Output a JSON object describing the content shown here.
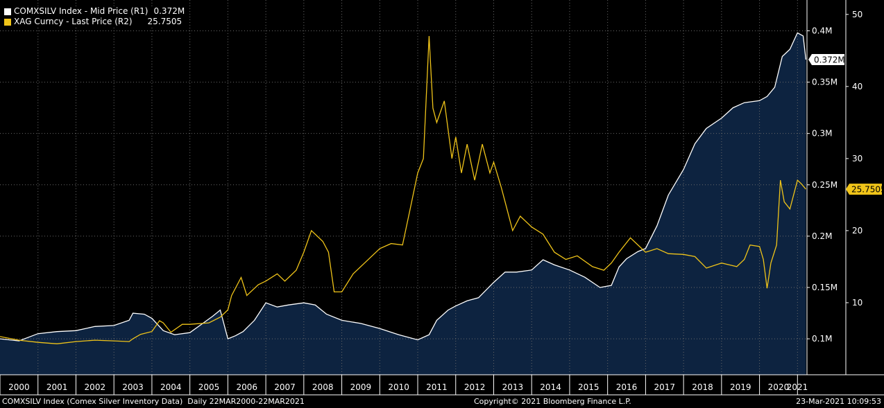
{
  "legend": [
    {
      "label": "COMXSILV Index - Mid Price (R1)",
      "value": "0.372M",
      "color": "#ffffff"
    },
    {
      "label": "XAG Curncy - Last Price (R2)",
      "value": "25.7505",
      "color": "#f0c419"
    }
  ],
  "footer": {
    "left": "COMXSILV Index (Comex Silver Inventory Data)  Daily 22MAR2000-22MAR2021",
    "center": "Copyright© 2021 Bloomberg Finance L.P.",
    "right": "23-Mar-2021 10:09:53"
  },
  "chart_data": {
    "type": "line",
    "x_tick_labels": [
      "2000",
      "2001",
      "2002",
      "2003",
      "2004",
      "2005",
      "2006",
      "2007",
      "2008",
      "2009",
      "2010",
      "2011",
      "2012",
      "2013",
      "2014",
      "2015",
      "2016",
      "2017",
      "2018",
      "2019",
      "2020",
      "2021"
    ],
    "grid": true,
    "series": [
      {
        "name": "COMXSILV Index - Mid Price (R1)",
        "axis": "R1",
        "style": "area",
        "color": "#ffffff",
        "fill": "#0d2340",
        "last_value_label": "0.372M",
        "x": [
          2000.0,
          2000.5,
          2001.0,
          2001.5,
          2002.0,
          2002.5,
          2003.0,
          2003.4,
          2003.5,
          2003.8,
          2004.0,
          2004.3,
          2004.6,
          2005.0,
          2005.3,
          2005.6,
          2005.8,
          2006.0,
          2006.2,
          2006.4,
          2006.7,
          2007.0,
          2007.3,
          2007.6,
          2008.0,
          2008.3,
          2008.6,
          2009.0,
          2009.5,
          2010.0,
          2010.5,
          2011.0,
          2011.3,
          2011.5,
          2011.8,
          2012.0,
          2012.3,
          2012.6,
          2013.0,
          2013.3,
          2013.6,
          2014.0,
          2014.3,
          2014.6,
          2015.0,
          2015.4,
          2015.8,
          2016.1,
          2016.3,
          2016.5,
          2016.8,
          2017.0,
          2017.3,
          2017.6,
          2018.0,
          2018.3,
          2018.6,
          2019.0,
          2019.3,
          2019.6,
          2020.0,
          2020.2,
          2020.4,
          2020.6,
          2020.8,
          2021.0,
          2021.15,
          2021.22
        ],
        "y": [
          0.1,
          0.098,
          0.105,
          0.107,
          0.108,
          0.112,
          0.113,
          0.118,
          0.125,
          0.124,
          0.12,
          0.108,
          0.104,
          0.106,
          0.114,
          0.122,
          0.128,
          0.1,
          0.103,
          0.107,
          0.118,
          0.135,
          0.131,
          0.133,
          0.135,
          0.133,
          0.124,
          0.118,
          0.115,
          0.11,
          0.104,
          0.099,
          0.104,
          0.118,
          0.128,
          0.132,
          0.137,
          0.14,
          0.155,
          0.165,
          0.165,
          0.167,
          0.177,
          0.172,
          0.167,
          0.16,
          0.15,
          0.152,
          0.17,
          0.178,
          0.185,
          0.188,
          0.21,
          0.24,
          0.265,
          0.29,
          0.305,
          0.315,
          0.325,
          0.33,
          0.332,
          0.336,
          0.345,
          0.375,
          0.382,
          0.398,
          0.395,
          0.372
        ]
      },
      {
        "name": "XAG Curncy - Last Price (R2)",
        "axis": "R2",
        "style": "line",
        "color": "#f0c419",
        "last_value_label": "25.7505",
        "x": [
          2000.0,
          2000.5,
          2001.0,
          2001.5,
          2002.0,
          2002.5,
          2003.0,
          2003.4,
          2003.5,
          2003.7,
          2004.0,
          2004.2,
          2004.3,
          2004.5,
          2004.8,
          2005.0,
          2005.5,
          2005.8,
          2006.0,
          2006.1,
          2006.35,
          2006.5,
          2006.8,
          2007.0,
          2007.3,
          2007.5,
          2007.8,
          2008.0,
          2008.2,
          2008.5,
          2008.65,
          2008.8,
          2009.0,
          2009.3,
          2009.6,
          2010.0,
          2010.3,
          2010.6,
          2010.8,
          2011.0,
          2011.15,
          2011.3,
          2011.4,
          2011.5,
          2011.7,
          2011.9,
          2012.0,
          2012.15,
          2012.3,
          2012.5,
          2012.7,
          2012.9,
          2013.0,
          2013.2,
          2013.3,
          2013.5,
          2013.7,
          2014.0,
          2014.3,
          2014.6,
          2014.9,
          2015.2,
          2015.6,
          2015.9,
          2016.1,
          2016.3,
          2016.6,
          2016.9,
          2017.0,
          2017.3,
          2017.6,
          2018.0,
          2018.3,
          2018.6,
          2019.0,
          2019.4,
          2019.6,
          2019.75,
          2020.0,
          2020.1,
          2020.2,
          2020.3,
          2020.45,
          2020.55,
          2020.65,
          2020.8,
          2021.0,
          2021.1,
          2021.22
        ],
        "y": [
          5.3,
          4.8,
          4.5,
          4.3,
          4.6,
          4.8,
          4.7,
          4.6,
          5.0,
          5.6,
          6.0,
          7.5,
          7.2,
          5.9,
          7.0,
          7.0,
          7.2,
          8.0,
          9.0,
          11.0,
          13.5,
          11.0,
          12.5,
          13.0,
          14.0,
          13.0,
          14.5,
          17.0,
          20.0,
          18.5,
          17.0,
          11.5,
          11.5,
          14.0,
          15.5,
          17.5,
          18.2,
          18.0,
          23.0,
          28.0,
          30.0,
          47.0,
          37.0,
          35.0,
          38.0,
          30.0,
          33.0,
          28.0,
          32.0,
          27.0,
          32.0,
          28.0,
          29.5,
          26.0,
          24.0,
          20.0,
          22.0,
          20.5,
          19.5,
          17.0,
          16.0,
          16.5,
          15.0,
          14.5,
          15.5,
          17.0,
          19.0,
          17.5,
          17.0,
          17.5,
          16.8,
          16.7,
          16.4,
          14.8,
          15.5,
          15.0,
          16.0,
          18.0,
          17.8,
          16.0,
          12.0,
          15.5,
          18.0,
          27.0,
          24.0,
          23.0,
          27.0,
          26.5,
          25.75
        ]
      }
    ],
    "axes": {
      "R1": {
        "min": 0.065,
        "max": 0.43,
        "ticks": [
          0.1,
          0.15,
          0.2,
          0.25,
          0.3,
          0.35,
          0.4
        ],
        "tick_labels": [
          "0.1M",
          "0.15M",
          "0.2M",
          "0.25M",
          "0.3M",
          "0.35M",
          "0.4M"
        ]
      },
      "R2": {
        "min": 0.0,
        "max": 52.0,
        "ticks": [
          10,
          20,
          30,
          40,
          50
        ],
        "tick_labels": [
          "10",
          "20",
          "30",
          "40",
          "50"
        ]
      }
    }
  },
  "colors": {
    "background": "#000000",
    "grid": "#6a6a6a",
    "area_fill": "#0d2340",
    "silver_line": "#ffffff",
    "gold_line": "#f0c419"
  }
}
